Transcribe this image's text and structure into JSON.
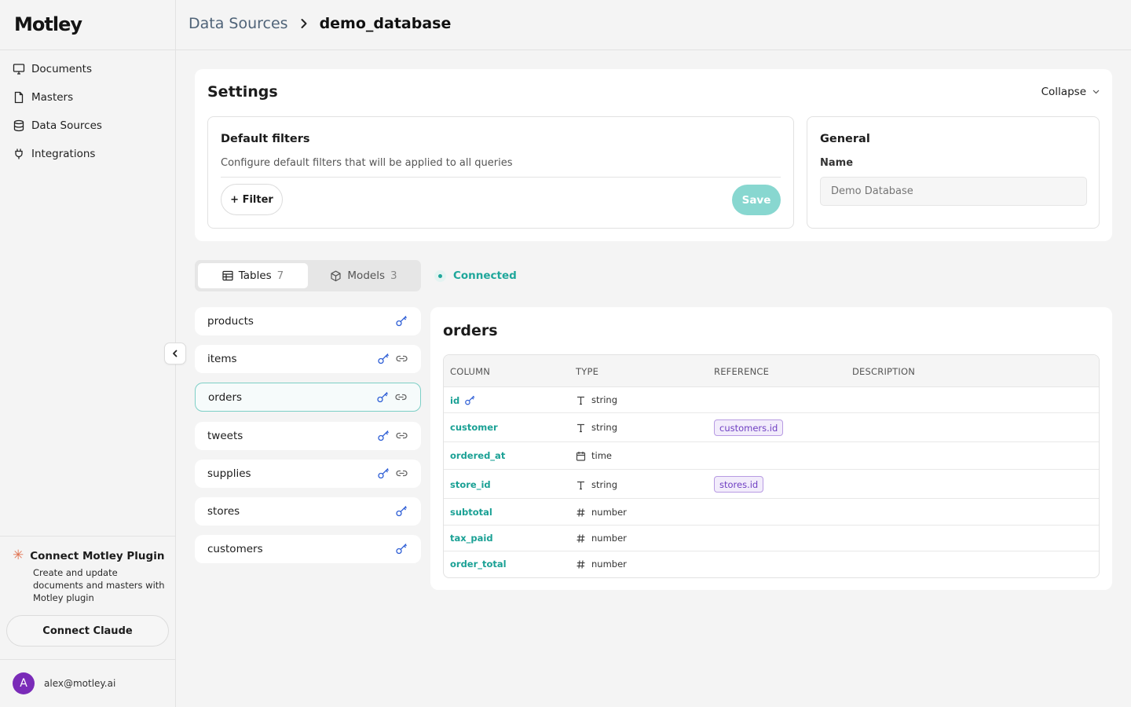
{
  "app": {
    "logo": "Motley"
  },
  "sidebar": {
    "items": [
      {
        "label": "Documents",
        "icon": "monitor-icon"
      },
      {
        "label": "Masters",
        "icon": "file-icon"
      },
      {
        "label": "Data Sources",
        "icon": "database-icon"
      },
      {
        "label": "Integrations",
        "icon": "plug-icon"
      }
    ],
    "plugin": {
      "title": "Connect Motley Plugin",
      "description": "Create and update documents and masters with Motley plugin",
      "button": "Connect Claude",
      "icon": "claude-star-icon"
    },
    "user": {
      "avatar_initial": "A",
      "email": "alex@motley.ai"
    }
  },
  "header": {
    "breadcrumb_parent": "Data Sources",
    "breadcrumb_current": "demo_database"
  },
  "settings": {
    "title": "Settings",
    "collapse_label": "Collapse",
    "filters": {
      "title": "Default filters",
      "description": "Configure default filters that will be applied to all queries",
      "add_label": "+ Filter",
      "save_label": "Save"
    },
    "general": {
      "title": "General",
      "name_label": "Name",
      "name_placeholder": "Demo Database"
    }
  },
  "tabs": [
    {
      "label": "Tables",
      "count": "7",
      "icon": "table-icon",
      "active": true
    },
    {
      "label": "Models",
      "count": "3",
      "icon": "cube-icon",
      "active": false
    }
  ],
  "status": {
    "label": "Connected",
    "color": "#1fa79b"
  },
  "tables": [
    {
      "name": "products",
      "key": true,
      "link": false
    },
    {
      "name": "items",
      "key": true,
      "link": true
    },
    {
      "name": "orders",
      "key": true,
      "link": true,
      "selected": true
    },
    {
      "name": "tweets",
      "key": true,
      "link": true
    },
    {
      "name": "supplies",
      "key": true,
      "link": true
    },
    {
      "name": "stores",
      "key": true,
      "link": false
    },
    {
      "name": "customers",
      "key": true,
      "link": false
    }
  ],
  "detail": {
    "title": "orders",
    "headers": [
      "COLUMN",
      "TYPE",
      "REFERENCE",
      "DESCRIPTION"
    ],
    "rows": [
      {
        "column": "id",
        "type": "string",
        "type_icon": "text-type-icon",
        "reference": "",
        "primary_key": true
      },
      {
        "column": "customer",
        "type": "string",
        "type_icon": "text-type-icon",
        "reference": "customers.id"
      },
      {
        "column": "ordered_at",
        "type": "time",
        "type_icon": "calendar-icon",
        "reference": ""
      },
      {
        "column": "store_id",
        "type": "string",
        "type_icon": "text-type-icon",
        "reference": "stores.id"
      },
      {
        "column": "subtotal",
        "type": "number",
        "type_icon": "hash-icon",
        "reference": ""
      },
      {
        "column": "tax_paid",
        "type": "number",
        "type_icon": "hash-icon",
        "reference": ""
      },
      {
        "column": "order_total",
        "type": "number",
        "type_icon": "hash-icon",
        "reference": ""
      }
    ]
  },
  "colors": {
    "accent": "#1fa79b",
    "save_disabled": "#88d7d0",
    "reference": "#6f3fc2",
    "key_icon": "#2f5fd6",
    "avatar": "#7a2bb8"
  }
}
